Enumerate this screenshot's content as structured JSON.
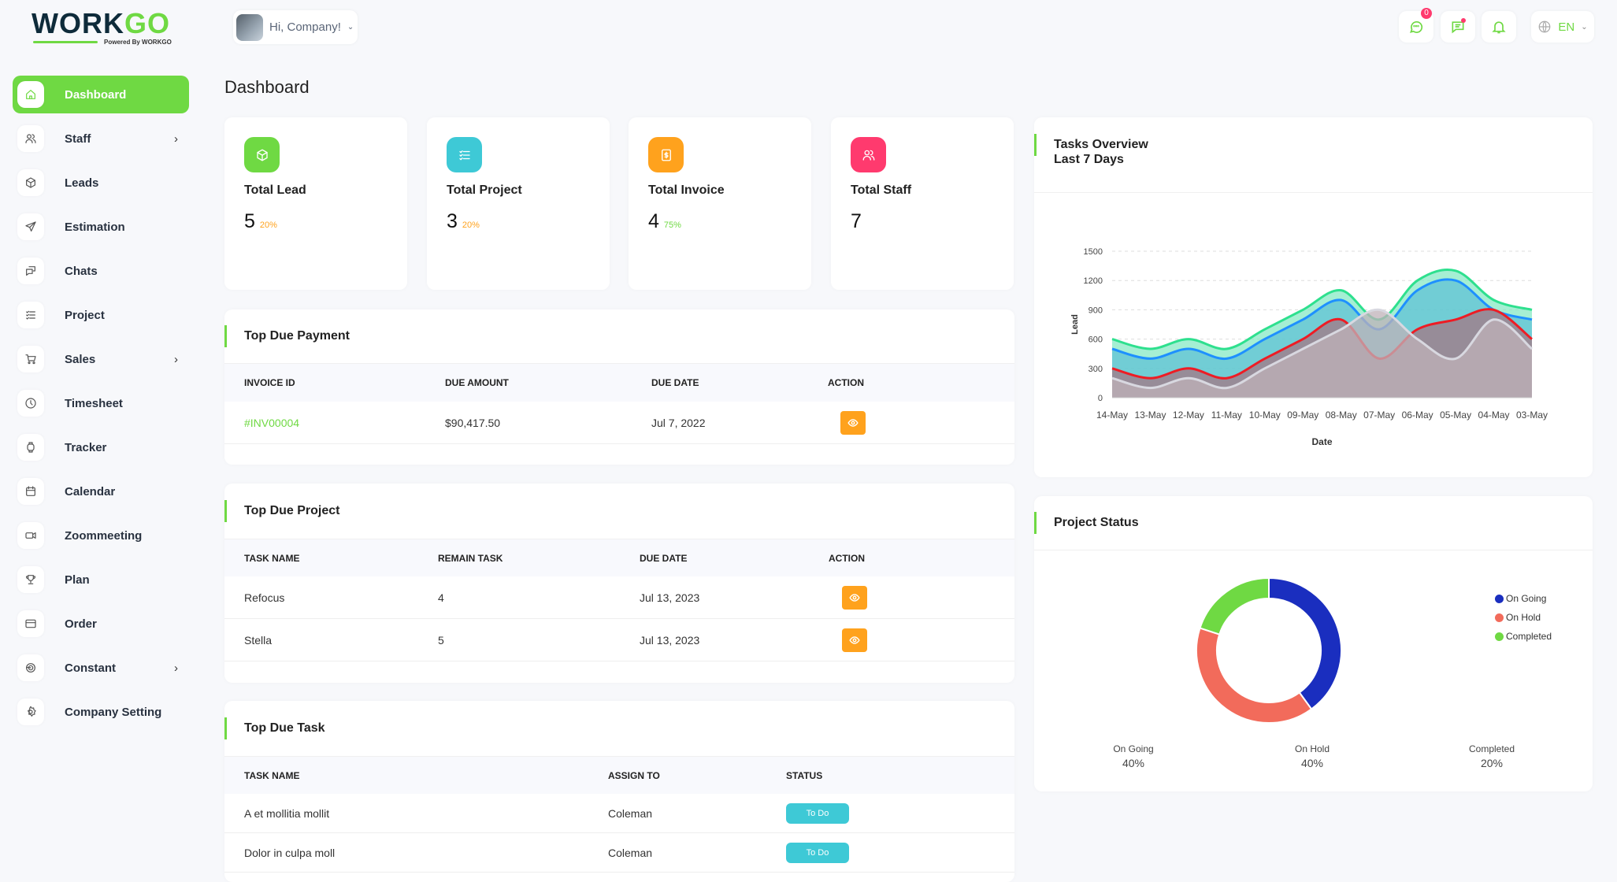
{
  "brand": {
    "name_a": "WORK",
    "name_b": "GO",
    "powered": "Powered By WORKGO"
  },
  "header": {
    "greeting": "Hi, Company!",
    "chat_badge": "0",
    "language": "EN"
  },
  "sidebar": {
    "items": [
      {
        "label": "Dashboard",
        "icon": "home-icon",
        "active": true
      },
      {
        "label": "Staff",
        "icon": "users-icon",
        "submenu": true
      },
      {
        "label": "Leads",
        "icon": "box-icon"
      },
      {
        "label": "Estimation",
        "icon": "send-icon"
      },
      {
        "label": "Chats",
        "icon": "chats-icon"
      },
      {
        "label": "Project",
        "icon": "list-check-icon"
      },
      {
        "label": "Sales",
        "icon": "cart-icon",
        "submenu": true
      },
      {
        "label": "Timesheet",
        "icon": "clock-icon"
      },
      {
        "label": "Tracker",
        "icon": "watch-icon"
      },
      {
        "label": "Calendar",
        "icon": "calendar-icon"
      },
      {
        "label": "Zoommeeting",
        "icon": "video-icon"
      },
      {
        "label": "Plan",
        "icon": "trophy-icon"
      },
      {
        "label": "Order",
        "icon": "credit-card-icon"
      },
      {
        "label": "Constant",
        "icon": "brand-icon",
        "submenu": true
      },
      {
        "label": "Company Setting",
        "icon": "gear-icon"
      }
    ]
  },
  "page": {
    "title": "Dashboard"
  },
  "stats": [
    {
      "label": "Total Lead",
      "value": "5",
      "pct": "20%",
      "color": "#6fd943",
      "pct_color": "#ffa21d",
      "icon": "box-icon"
    },
    {
      "label": "Total Project",
      "value": "3",
      "pct": "20%",
      "color": "#3ec9d6",
      "pct_color": "#ffa21d",
      "icon": "list-check-icon"
    },
    {
      "label": "Total Invoice",
      "value": "4",
      "pct": "75%",
      "color": "#ffa21d",
      "pct_color": "#6fd943",
      "icon": "invoice-icon"
    },
    {
      "label": "Total Staff",
      "value": "7",
      "pct": "",
      "color": "#ff3a6e",
      "pct_color": "#6fd943",
      "icon": "users-icon"
    }
  ],
  "due_payment": {
    "title": "Top Due Payment",
    "headers": [
      "INVOICE ID",
      "DUE AMOUNT",
      "DUE DATE",
      "ACTION"
    ],
    "rows": [
      {
        "id": "#INV00004",
        "amount": "$90,417.50",
        "date": "Jul 7, 2022"
      }
    ]
  },
  "due_project": {
    "title": "Top Due Project",
    "headers": [
      "TASK NAME",
      "REMAIN TASK",
      "DUE DATE",
      "ACTION"
    ],
    "rows": [
      {
        "name": "Refocus",
        "remain": "4",
        "date": "Jul 13, 2023"
      },
      {
        "name": "Stella",
        "remain": "5",
        "date": "Jul 13, 2023"
      }
    ]
  },
  "due_task": {
    "title": "Top Due Task",
    "headers": [
      "TASK NAME",
      "ASSIGN TO",
      "STATUS"
    ],
    "rows": [
      {
        "name": "A et mollitia mollit",
        "assign": "Coleman",
        "status": "To Do"
      },
      {
        "name": "Dolor in culpa moll",
        "assign": "Coleman",
        "status": "To Do"
      }
    ]
  },
  "chart_data": [
    {
      "type": "area",
      "title": "Tasks Overview",
      "subtitle": "Last 7 Days",
      "xlabel": "Date",
      "ylabel": "Lead",
      "ylim": [
        0,
        1500
      ],
      "yticks": [
        "0",
        "300",
        "600",
        "900",
        "1200",
        "1500"
      ],
      "grid": true,
      "categories": [
        "14-May",
        "13-May",
        "12-May",
        "11-May",
        "10-May",
        "09-May",
        "08-May",
        "07-May",
        "06-May",
        "05-May",
        "04-May",
        "03-May"
      ],
      "series": [
        {
          "color": "#2ee08e",
          "values": [
            600,
            500,
            600,
            500,
            700,
            900,
            1100,
            800,
            1200,
            1300,
            1000,
            900
          ]
        },
        {
          "color": "#1e90ff",
          "values": [
            500,
            400,
            500,
            400,
            600,
            800,
            1000,
            700,
            1100,
            1200,
            900,
            800
          ]
        },
        {
          "color": "#ee1c24",
          "values": [
            300,
            200,
            300,
            200,
            400,
            600,
            800,
            400,
            700,
            800,
            900,
            600
          ]
        },
        {
          "color": "#d8d8e0",
          "values": [
            200,
            100,
            200,
            100,
            300,
            500,
            700,
            900,
            600,
            400,
            800,
            500
          ]
        }
      ]
    },
    {
      "type": "pie",
      "title": "Project Status",
      "legend": "right",
      "slices": [
        {
          "label": "On Going",
          "value": 40,
          "pct": "40%",
          "color": "#1a2ebf"
        },
        {
          "label": "On Hold",
          "value": 40,
          "pct": "40%",
          "color": "#f26b5b"
        },
        {
          "label": "Completed",
          "value": 20,
          "pct": "20%",
          "color": "#6fd943"
        }
      ]
    }
  ]
}
